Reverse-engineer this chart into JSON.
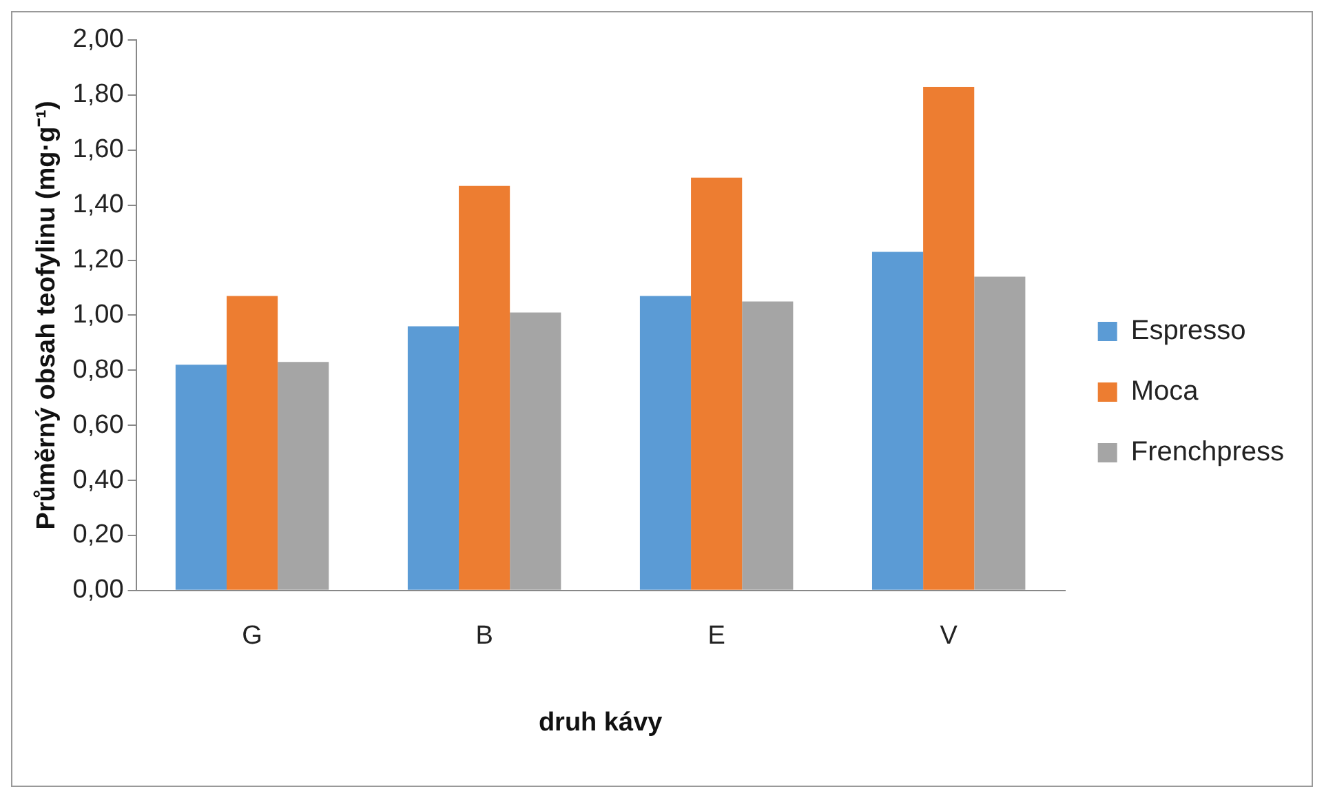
{
  "chart_data": {
    "type": "bar",
    "xlabel": "druh kávy",
    "ylabel": "Průměrný obsah teofylinu (mg·g⁻¹)",
    "categories": [
      "G",
      "B",
      "E",
      "V"
    ],
    "series": [
      {
        "name": "Espresso",
        "color": "#5b9bd5",
        "values": [
          0.82,
          0.96,
          1.07,
          1.23
        ]
      },
      {
        "name": "Moca",
        "color": "#ed7d31",
        "values": [
          1.07,
          1.47,
          1.5,
          1.83
        ]
      },
      {
        "name": "Frenchpress",
        "color": "#a5a5a5",
        "values": [
          0.83,
          1.01,
          1.05,
          1.14
        ]
      }
    ],
    "ylim": [
      0,
      2
    ],
    "yticks": [
      {
        "value": 0,
        "label": "0,00"
      },
      {
        "value": 0.2,
        "label": "0,20"
      },
      {
        "value": 0.4,
        "label": "0,40"
      },
      {
        "value": 0.6,
        "label": "0,60"
      },
      {
        "value": 0.8,
        "label": "0,80"
      },
      {
        "value": 1,
        "label": "1,00"
      },
      {
        "value": 1.2,
        "label": "1,20"
      },
      {
        "value": 1.4,
        "label": "1,40"
      },
      {
        "value": 1.6,
        "label": "1,60"
      },
      {
        "value": 1.8,
        "label": "1,80"
      },
      {
        "value": 2,
        "label": "2,00"
      }
    ],
    "grid": false,
    "legend": "right"
  }
}
